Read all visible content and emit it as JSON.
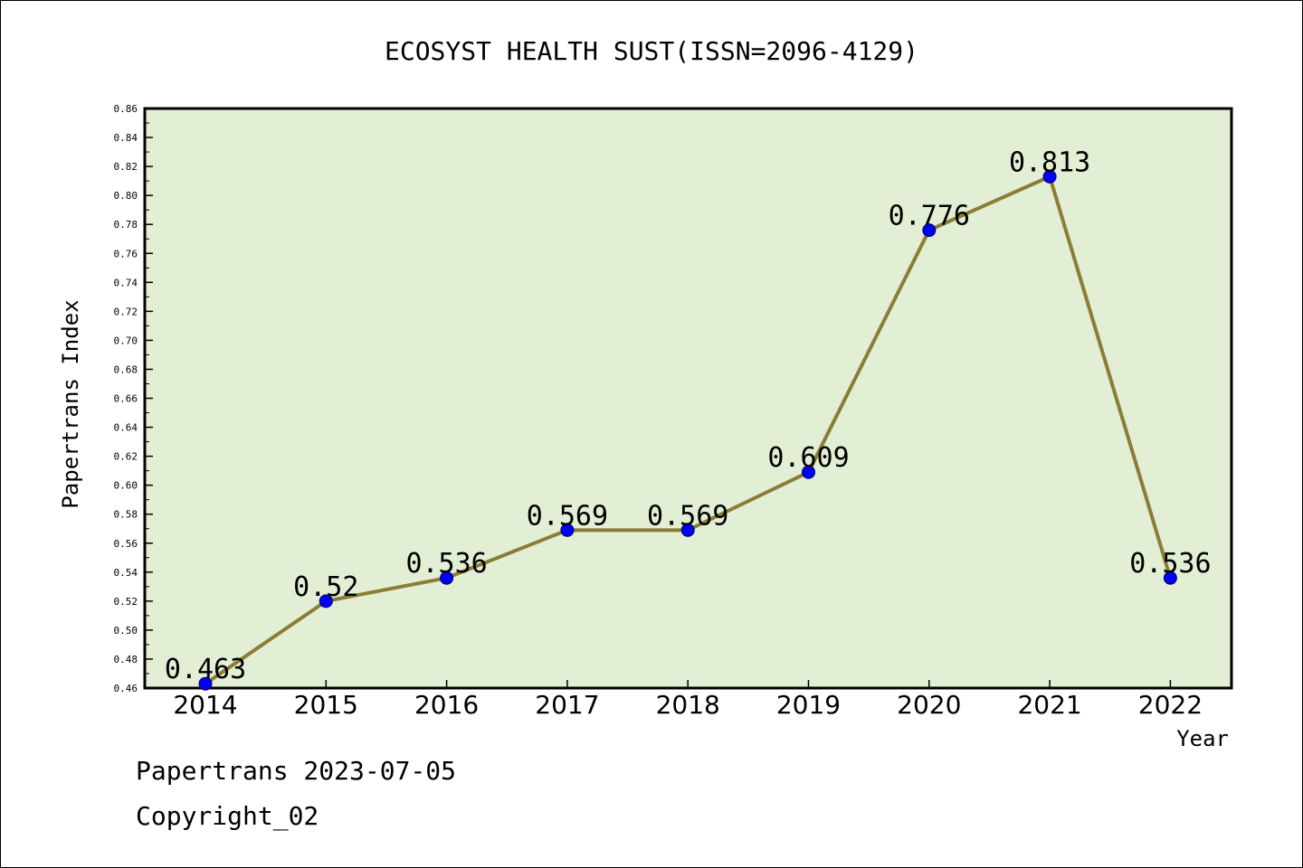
{
  "chart_data": {
    "type": "line",
    "title": "ECOSYST HEALTH SUST(ISSN=2096-4129)",
    "xlabel": "Year",
    "ylabel": "Papertrans Index",
    "categories": [
      "2014",
      "2015",
      "2016",
      "2017",
      "2018",
      "2019",
      "2020",
      "2021",
      "2022"
    ],
    "values": [
      0.463,
      0.52,
      0.536,
      0.569,
      0.569,
      0.609,
      0.776,
      0.813,
      0.536
    ],
    "value_labels": [
      "0.463",
      "0.52",
      "0.536",
      "0.569",
      "0.569",
      "0.609",
      "0.776",
      "0.813",
      "0.536"
    ],
    "ylim": [
      0.46,
      0.86
    ],
    "yticks": [
      "0.46",
      "0.48",
      "0.50",
      "0.52",
      "0.54",
      "0.56",
      "0.58",
      "0.60",
      "0.62",
      "0.64",
      "0.66",
      "0.68",
      "0.70",
      "0.72",
      "0.74",
      "0.76",
      "0.78",
      "0.80",
      "0.82",
      "0.84",
      "0.86"
    ],
    "grid": false,
    "legend": "none",
    "colors": {
      "plot_background": "#e2efd5",
      "line": "#8b7d35",
      "marker": "#0000ff"
    }
  },
  "footer": {
    "line1": "Papertrans 2023-07-05",
    "line2": "Copyright_02"
  }
}
